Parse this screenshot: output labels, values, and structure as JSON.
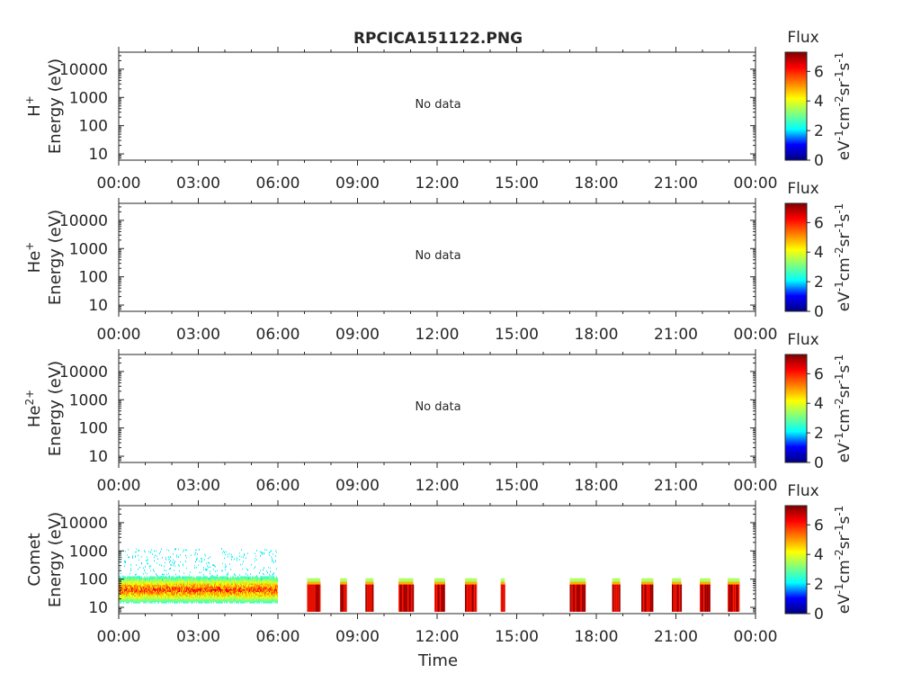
{
  "figure": {
    "title": "RPCICA151122.PNG",
    "xlabel": "Time",
    "no_data_text": "No data"
  },
  "colorbar": {
    "title": "Flux",
    "ticks": [
      "0",
      "2",
      "4",
      "6"
    ],
    "range": [
      0,
      7.3
    ],
    "colormap": "jet",
    "colors": [
      "#00007f",
      "#0000ff",
      "#00ffff",
      "#7fff7f",
      "#ffff00",
      "#ff7f00",
      "#ff0000",
      "#7f0000"
    ]
  },
  "panels": [
    {
      "ylabel": "H",
      "ylabel_sup": "+",
      "ylabel_line2": "Energy (eV)",
      "has_data": false
    },
    {
      "ylabel": "He",
      "ylabel_sup": "+",
      "ylabel_line2": "Energy (eV)",
      "has_data": false
    },
    {
      "ylabel": "He",
      "ylabel_sup": "2+",
      "ylabel_line2": "Energy (eV)",
      "has_data": false
    },
    {
      "ylabel": "Comet",
      "ylabel_sup": "",
      "ylabel_line2": "Energy (eV)",
      "has_data": true
    }
  ],
  "chart_data": {
    "type": "heatmap",
    "title": "RPCICA151122.PNG",
    "xlabel": "Time",
    "x_ticks": [
      "00:00",
      "03:00",
      "06:00",
      "09:00",
      "12:00",
      "15:00",
      "18:00",
      "21:00",
      "00:00"
    ],
    "x_range_hours": [
      0,
      24
    ],
    "y_scale": "log",
    "y_ticks": [
      "10",
      "100",
      "1000",
      "10000"
    ],
    "y_range_eV": [
      6,
      40000
    ],
    "colorbar_label": "Flux",
    "colorbar_range": [
      0,
      7.3
    ],
    "panels": [
      {
        "name": "H+",
        "status": "No data"
      },
      {
        "name": "He+",
        "status": "No data"
      },
      {
        "name": "He2+",
        "status": "No data"
      },
      {
        "name": "Comet",
        "continuous_interval_hours": [
          0.0,
          6.0
        ],
        "continuous_peak_energy_eV": 40,
        "bursts_hours": [
          [
            7.1,
            7.6
          ],
          [
            8.35,
            8.6
          ],
          [
            9.3,
            9.6
          ],
          [
            10.55,
            11.1
          ],
          [
            11.9,
            12.3
          ],
          [
            13.05,
            13.5
          ],
          [
            14.4,
            14.55
          ],
          [
            17.0,
            17.6
          ],
          [
            18.6,
            18.9
          ],
          [
            19.7,
            20.15
          ],
          [
            20.85,
            21.2
          ],
          [
            21.9,
            22.3
          ],
          [
            22.95,
            23.4
          ]
        ],
        "burst_energy_range_eV": [
          7,
          80
        ]
      }
    ]
  }
}
